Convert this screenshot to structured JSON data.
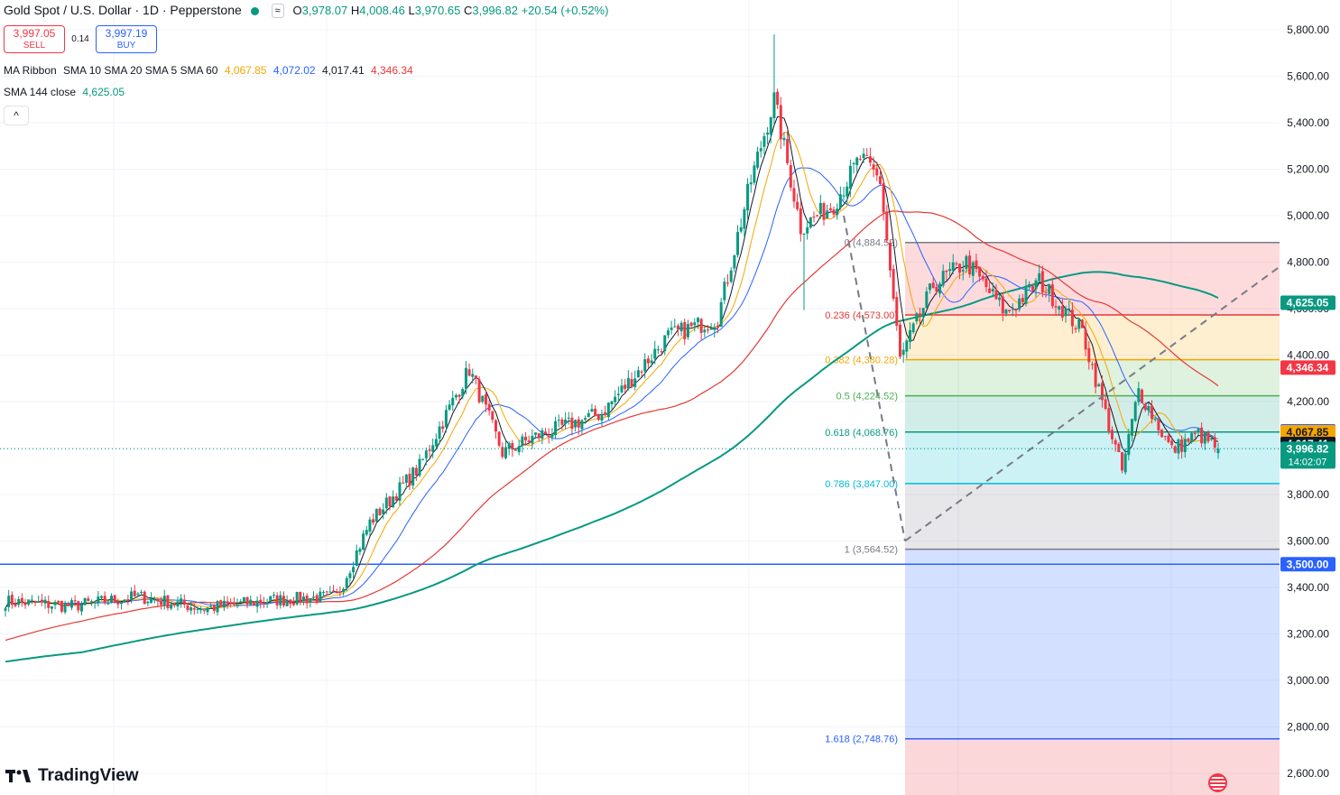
{
  "header": {
    "title": "Gold Spot / U.S. Dollar · 1D · Pepperstone",
    "ohlc": [
      {
        "label": "O",
        "value": "3,978.07"
      },
      {
        "label": "H",
        "value": "4,008.46"
      },
      {
        "label": "L",
        "value": "3,970.65"
      },
      {
        "label": "C",
        "value": "3,996.82"
      }
    ],
    "change": "+20.54 (+0.52%)"
  },
  "trade": {
    "sell_price": "3,997.05",
    "sell_label": "SELL",
    "spread": "0.14",
    "buy_price": "3,997.19",
    "buy_label": "BUY"
  },
  "indicators": {
    "ribbon_name": "MA Ribbon",
    "ribbon_params": "SMA 10 SMA 20 SMA 5 SMA 60",
    "ribbon_values": [
      {
        "value": "4,067.85",
        "color": "#f7a600"
      },
      {
        "value": "4,072.02",
        "color": "#2962ff"
      },
      {
        "value": "4,017.41",
        "color": "#131722"
      },
      {
        "value": "4,346.34",
        "color": "#e53935"
      }
    ],
    "sma144_name": "SMA 144 close",
    "sma144_value": "4,625.05"
  },
  "logo_text": "TradingView",
  "colors": {
    "up": "#089981",
    "down": "#f23645",
    "sma5": "#131722",
    "sma10": "#f7a600",
    "sma20": "#2962ff",
    "sma60": "#e53935",
    "sma144": "#089981",
    "support": "#2962ff"
  },
  "chart_data": {
    "type": "candlestick",
    "title": "Gold Spot / U.S. Dollar · 1D · Pepperstone",
    "ylim": [
      2550,
      5900
    ],
    "y_ticks": [
      "5,800.00",
      "5,600.00",
      "5,400.00",
      "5,200.00",
      "5,000.00",
      "4,800.00",
      "4,600.00",
      "4,400.00",
      "4,200.00",
      "4,000.00",
      "3,800.00",
      "3,600.00",
      "3,400.00",
      "3,200.00",
      "3,000.00",
      "2,800.00",
      "2,600.00"
    ],
    "y_tick_values": [
      5800,
      5600,
      5400,
      5200,
      5000,
      4800,
      4600,
      4400,
      4200,
      4000,
      3800,
      3600,
      3400,
      3200,
      3000,
      2800,
      2600
    ],
    "price_key_points": [
      [
        0,
        3340
      ],
      [
        20,
        3320
      ],
      [
        40,
        3360
      ],
      [
        60,
        3310
      ],
      [
        80,
        3345
      ],
      [
        100,
        3360
      ],
      [
        110,
        3680
      ],
      [
        125,
        3920
      ],
      [
        140,
        4340
      ],
      [
        150,
        3980
      ],
      [
        160,
        4050
      ],
      [
        180,
        4150
      ],
      [
        200,
        4480
      ],
      [
        215,
        4560
      ],
      [
        225,
        5150
      ],
      [
        232,
        5500
      ],
      [
        240,
        4950
      ],
      [
        250,
        5050
      ],
      [
        258,
        5250
      ],
      [
        264,
        5150
      ],
      [
        270,
        4380
      ],
      [
        280,
        4700
      ],
      [
        290,
        4800
      ],
      [
        302,
        4580
      ],
      [
        312,
        4720
      ],
      [
        325,
        4500
      ],
      [
        337,
        3900
      ],
      [
        342,
        4250
      ],
      [
        352,
        3990
      ],
      [
        360,
        4060
      ],
      [
        366,
        3997
      ]
    ],
    "fibonacci": {
      "levels": [
        {
          "label": "0 (4,884.52)",
          "ratio": 0,
          "value": 4884.52,
          "color": "#787b86"
        },
        {
          "label": "0.236 (4,573.00)",
          "ratio": 0.236,
          "value": 4573.0,
          "color": "#e53935"
        },
        {
          "label": "0.382 (4,380.28)",
          "ratio": 0.382,
          "value": 4380.28,
          "color": "#f7a600"
        },
        {
          "label": "0.5 (4,224.52)",
          "ratio": 0.5,
          "value": 4224.52,
          "color": "#4caf50"
        },
        {
          "label": "0.618 (4,068.76)",
          "ratio": 0.618,
          "value": 4068.76,
          "color": "#089981"
        },
        {
          "label": "0.786 (3,847.00)",
          "ratio": 0.786,
          "value": 3847.0,
          "color": "#00bcd4"
        },
        {
          "label": "1 (3,564.52)",
          "ratio": 1,
          "value": 3564.52,
          "color": "#787b86"
        },
        {
          "label": "1.618 (2,748.76)",
          "ratio": 1.618,
          "value": 2748.76,
          "color": "#2962ff"
        }
      ]
    },
    "horizontal_line": {
      "value": 3500,
      "label": "3,500.00",
      "color": "#2962ff"
    },
    "price_labels": [
      {
        "value": 4625.05,
        "label": "4,625.05",
        "bg": "#089981",
        "fg": "#ffffff"
      },
      {
        "value": 4346.34,
        "label": "4,346.34",
        "bg": "#f23645",
        "fg": "#ffffff"
      },
      {
        "value": 4072.02,
        "label": "4,072.02",
        "bg": "#2962ff",
        "fg": "#ffffff"
      },
      {
        "value": 4067.85,
        "label": "4,067.85",
        "bg": "#f7a600",
        "fg": "#131722"
      },
      {
        "value": 4017.41,
        "label": "4,017.41",
        "bg": "#131722",
        "fg": "#ffffff"
      },
      {
        "value": 3996.82,
        "label": "3,996.82",
        "label2": "14:02:07",
        "bg": "#089981",
        "fg": "#ffffff"
      },
      {
        "value": 3500.0,
        "label": "3,500.00",
        "bg": "#2962ff",
        "fg": "#ffffff"
      }
    ],
    "last_price": 3996.82,
    "countdown": "14:02:07"
  }
}
